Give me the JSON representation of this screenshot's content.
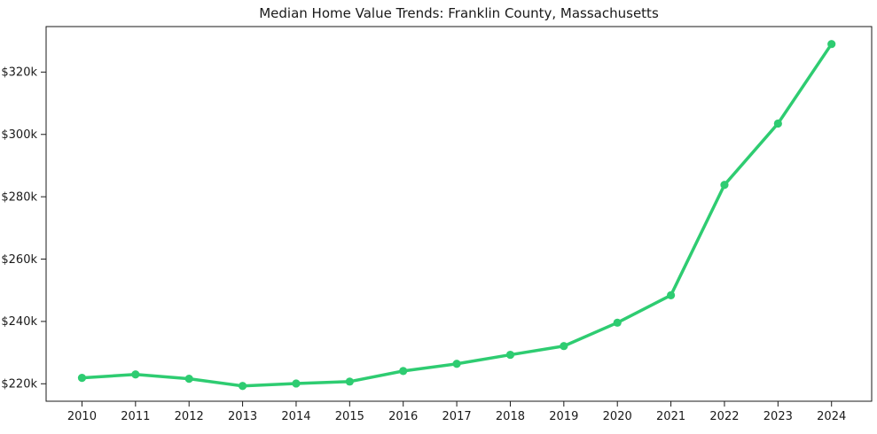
{
  "chart_data": {
    "type": "line",
    "title": "Median Home Value Trends: Franklin County, Massachusetts",
    "x": [
      2010,
      2011,
      2012,
      2013,
      2014,
      2015,
      2016,
      2017,
      2018,
      2019,
      2020,
      2021,
      2022,
      2023,
      2024
    ],
    "values": [
      221900,
      223000,
      221600,
      219300,
      220100,
      220700,
      224100,
      226400,
      229300,
      232100,
      239600,
      248400,
      283800,
      303500,
      329000
    ],
    "xtick_labels": [
      "2010",
      "2011",
      "2012",
      "2013",
      "2014",
      "2015",
      "2016",
      "2017",
      "2018",
      "2019",
      "2020",
      "2021",
      "2022",
      "2023",
      "2024"
    ],
    "yticks": [
      {
        "value": 220000,
        "label": "$220k"
      },
      {
        "value": 240000,
        "label": "$240k"
      },
      {
        "value": 260000,
        "label": "$260k"
      },
      {
        "value": 280000,
        "label": "$280k"
      },
      {
        "value": 300000,
        "label": "$300k"
      },
      {
        "value": 320000,
        "label": "$320k"
      }
    ],
    "xlim": [
      2009.33,
      2024.75
    ],
    "ylim": [
      214400,
      334600
    ],
    "grid": false,
    "legend_position": "none",
    "marker": "circle",
    "line_color": "#2ecc71",
    "frame_color": "#1a1a1a",
    "text_color": "#1a1a1a"
  }
}
